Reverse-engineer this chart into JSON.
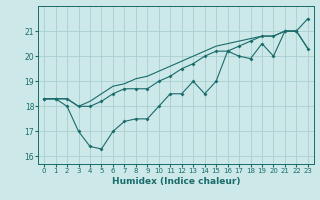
{
  "xlabel": "Humidex (Indice chaleur)",
  "ylabel": "",
  "bg_color": "#cce8e8",
  "line_color": "#1a6b6b",
  "grid_color": "#aacfcf",
  "x_data1": [
    0,
    1,
    2,
    3,
    4,
    5,
    6,
    7,
    8,
    9,
    10,
    11,
    12,
    13,
    14,
    15,
    16,
    17,
    18,
    19,
    20,
    21,
    22,
    23
  ],
  "y_data1": [
    18.3,
    18.3,
    18.0,
    17.0,
    16.4,
    16.3,
    17.0,
    17.4,
    17.5,
    17.5,
    18.0,
    18.5,
    18.5,
    19.0,
    18.5,
    19.0,
    20.2,
    20.0,
    19.9,
    20.5,
    20.0,
    21.0,
    21.0,
    21.5
  ],
  "x_data2": [
    0,
    1,
    2,
    3,
    4,
    5,
    6,
    7,
    8,
    9,
    10,
    11,
    12,
    13,
    14,
    15,
    16,
    17,
    18,
    19,
    20,
    21,
    22,
    23
  ],
  "y_data2": [
    18.3,
    18.3,
    18.3,
    18.0,
    18.0,
    18.2,
    18.5,
    18.7,
    18.7,
    18.7,
    19.0,
    19.2,
    19.5,
    19.7,
    20.0,
    20.2,
    20.2,
    20.4,
    20.6,
    20.8,
    20.8,
    21.0,
    21.0,
    20.3
  ],
  "x_data3": [
    0,
    1,
    2,
    3,
    4,
    5,
    6,
    7,
    8,
    9,
    10,
    11,
    12,
    13,
    14,
    15,
    16,
    17,
    18,
    19,
    20,
    21,
    22,
    23
  ],
  "y_data3": [
    18.3,
    18.3,
    18.3,
    18.0,
    18.2,
    18.5,
    18.8,
    18.9,
    19.1,
    19.2,
    19.4,
    19.6,
    19.8,
    20.0,
    20.2,
    20.4,
    20.5,
    20.6,
    20.7,
    20.8,
    20.8,
    21.0,
    21.0,
    20.3
  ],
  "ylim": [
    15.7,
    22.0
  ],
  "xlim": [
    -0.5,
    23.5
  ],
  "yticks": [
    16,
    17,
    18,
    19,
    20,
    21
  ],
  "xticks": [
    0,
    1,
    2,
    3,
    4,
    5,
    6,
    7,
    8,
    9,
    10,
    11,
    12,
    13,
    14,
    15,
    16,
    17,
    18,
    19,
    20,
    21,
    22,
    23
  ]
}
